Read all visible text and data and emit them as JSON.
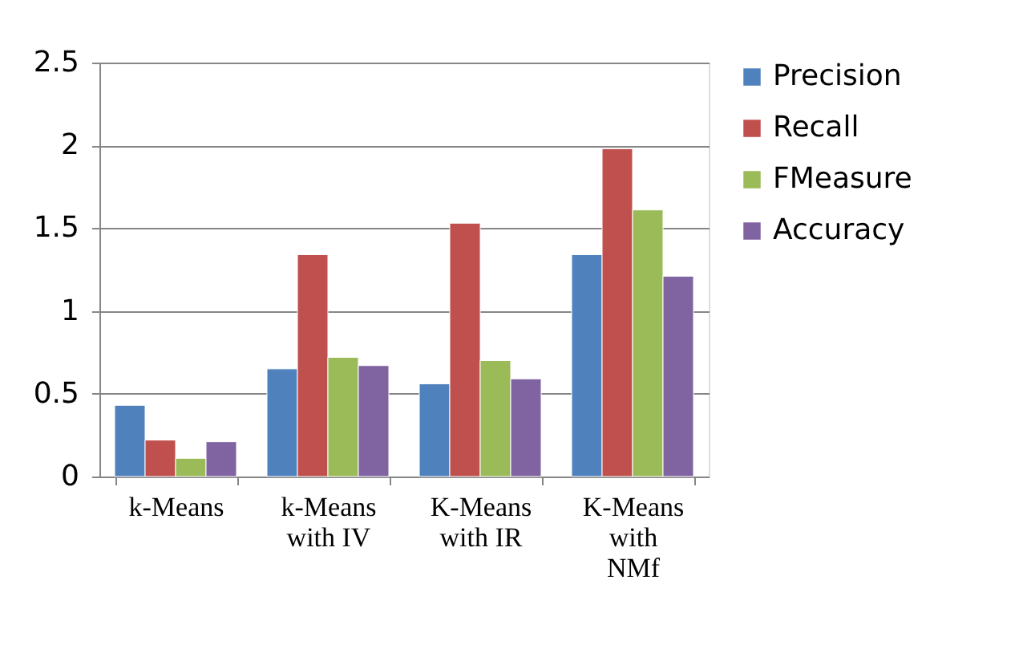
{
  "chart_data": {
    "type": "bar",
    "categories": [
      "k-Means",
      "k-Means with IV",
      "K-Means with IR",
      "K-Means with NMf"
    ],
    "series": [
      {
        "name": "Precision",
        "color": "#4f81bd",
        "values": [
          0.43,
          0.65,
          0.56,
          1.34
        ]
      },
      {
        "name": "Recall",
        "color": "#c0504d",
        "values": [
          0.22,
          1.34,
          1.53,
          1.98
        ]
      },
      {
        "name": "FMeasure",
        "color": "#9bbb59",
        "values": [
          0.11,
          0.72,
          0.7,
          1.61
        ]
      },
      {
        "name": "Accuracy",
        "color": "#8064a2",
        "values": [
          0.21,
          0.67,
          0.59,
          1.21
        ]
      }
    ],
    "ylim": [
      0,
      2.5
    ],
    "yticks": [
      0,
      0.5,
      1,
      1.5,
      2,
      2.5
    ],
    "grid": "y",
    "legend": "right"
  }
}
